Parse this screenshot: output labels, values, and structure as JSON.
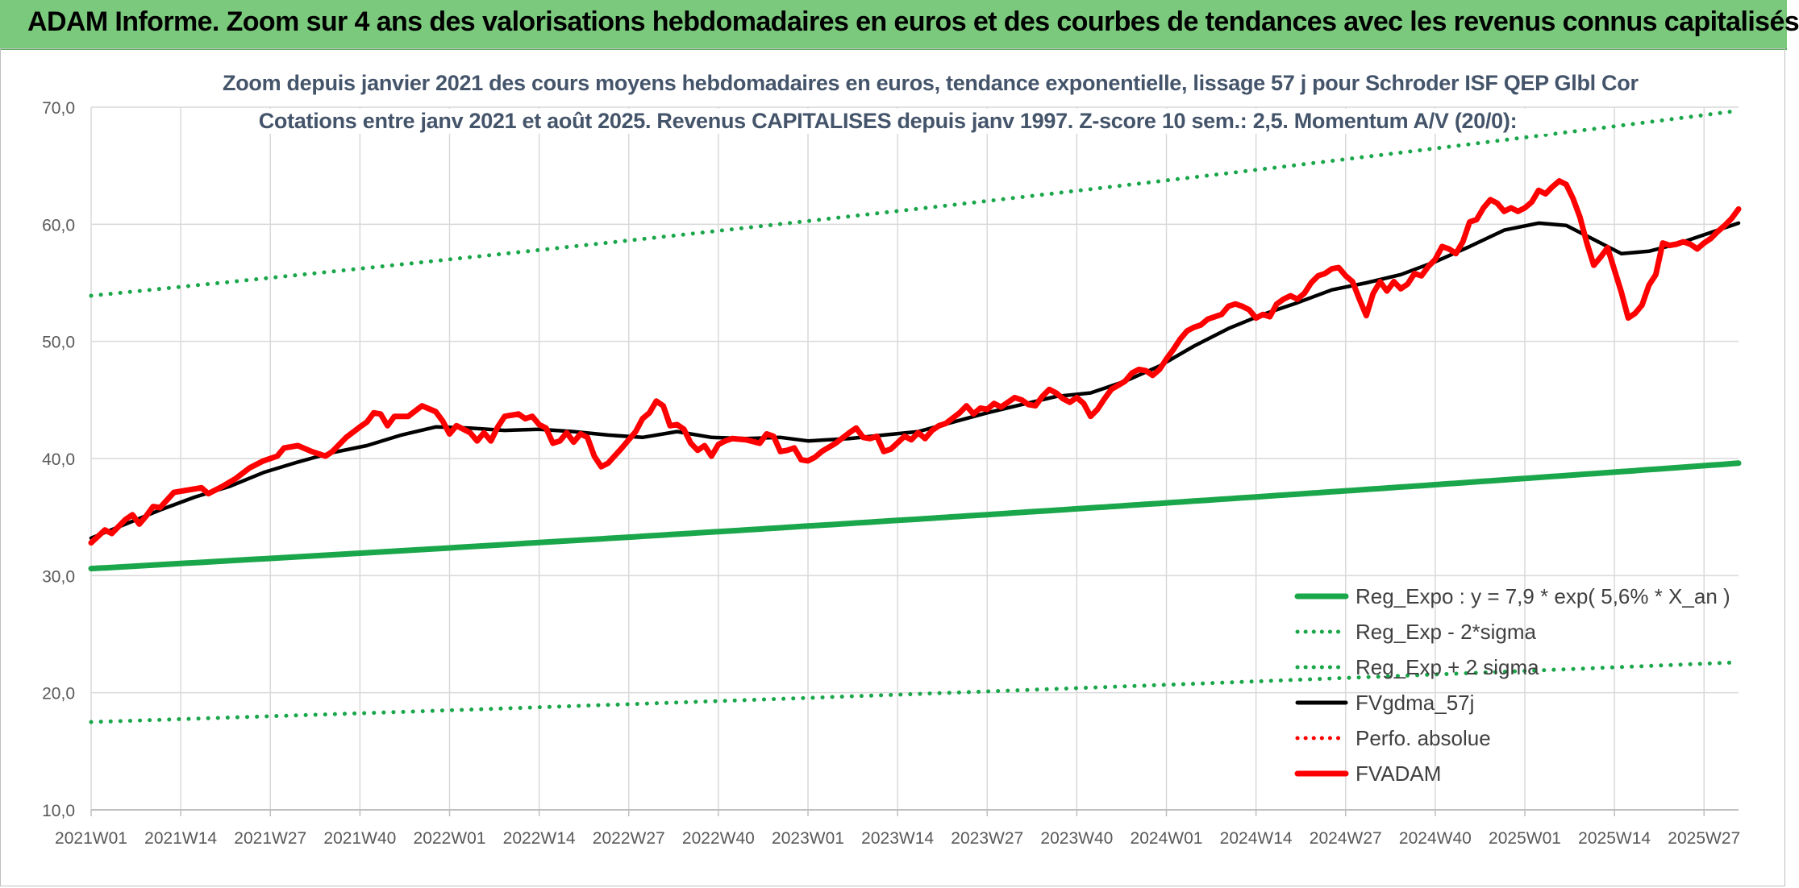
{
  "header": {
    "title": "ADAM Informe. Zoom sur 4 ans des valorisations hebdomadaires en euros et des courbes de tendances avec les revenus connus capitalisés"
  },
  "chart_data": {
    "type": "line",
    "title": "Zoom depuis janvier 2021 des cours moyens hebdomadaires en euros, tendance exponentielle, lissage 57 j pour Schroder ISF QEP Glbl Cor",
    "subtitle": "Cotations entre janv 2021 et août 2025. Revenus CAPITALISES depuis janv 1997. Z-score 10 sem.: 2,5. Momentum A/V (20/0):",
    "xlabel": "",
    "ylabel": "",
    "ylim": [
      10,
      70
    ],
    "yticks": [
      "10,0",
      "20,0",
      "30,0",
      "40,0",
      "50,0",
      "60,0",
      "70,0"
    ],
    "x_range_weeks": [
      0,
      239
    ],
    "x_ticks": [
      {
        "week": 0,
        "label": "2021W01"
      },
      {
        "week": 13,
        "label": "2021W14"
      },
      {
        "week": 26,
        "label": "2021W27"
      },
      {
        "week": 39,
        "label": "2021W40"
      },
      {
        "week": 52,
        "label": "2022W01"
      },
      {
        "week": 65,
        "label": "2022W14"
      },
      {
        "week": 78,
        "label": "2022W27"
      },
      {
        "week": 91,
        "label": "2022W40"
      },
      {
        "week": 104,
        "label": "2023W01"
      },
      {
        "week": 117,
        "label": "2023W14"
      },
      {
        "week": 130,
        "label": "2023W27"
      },
      {
        "week": 143,
        "label": "2023W40"
      },
      {
        "week": 156,
        "label": "2024W01"
      },
      {
        "week": 169,
        "label": "2024W14"
      },
      {
        "week": 182,
        "label": "2024W27"
      },
      {
        "week": 195,
        "label": "2024W40"
      },
      {
        "week": 208,
        "label": "2025W01"
      },
      {
        "week": 221,
        "label": "2025W14"
      },
      {
        "week": 234,
        "label": "2025W27"
      }
    ],
    "grid": true,
    "legend_position": "bottom-right",
    "series": [
      {
        "name": "Reg_Expo : y = 7,9 * exp( 5,6% *  X_an )",
        "color": "#1aa64a",
        "style": "solid",
        "points": [
          [
            0,
            30.6
          ],
          [
            239,
            39.6
          ]
        ]
      },
      {
        "name": "Reg_Exp - 2*sigma",
        "color": "#1aa64a",
        "style": "dotted",
        "points": [
          [
            0,
            17.5
          ],
          [
            239,
            22.6
          ]
        ]
      },
      {
        "name": "Reg_Exp + 2 sigma",
        "color": "#1aa64a",
        "style": "dotted",
        "points": [
          [
            0,
            53.9
          ],
          [
            239,
            69.7
          ]
        ]
      },
      {
        "name": "FVgdma_57j",
        "color": "#000000",
        "style": "solid",
        "points": [
          [
            0,
            33.2
          ],
          [
            5,
            34.4
          ],
          [
            10,
            35.6
          ],
          [
            15,
            36.7
          ],
          [
            20,
            37.6
          ],
          [
            25,
            38.8
          ],
          [
            30,
            39.7
          ],
          [
            35,
            40.5
          ],
          [
            40,
            41.1
          ],
          [
            45,
            42.0
          ],
          [
            50,
            42.7
          ],
          [
            55,
            42.6
          ],
          [
            60,
            42.4
          ],
          [
            65,
            42.5
          ],
          [
            70,
            42.3
          ],
          [
            75,
            42.0
          ],
          [
            80,
            41.8
          ],
          [
            85,
            42.3
          ],
          [
            90,
            41.8
          ],
          [
            95,
            41.7
          ],
          [
            100,
            41.8
          ],
          [
            104,
            41.5
          ],
          [
            110,
            41.7
          ],
          [
            115,
            42.0
          ],
          [
            120,
            42.3
          ],
          [
            125,
            43.1
          ],
          [
            130,
            43.9
          ],
          [
            135,
            44.6
          ],
          [
            140,
            45.3
          ],
          [
            145,
            45.6
          ],
          [
            150,
            46.6
          ],
          [
            155,
            47.9
          ],
          [
            160,
            49.6
          ],
          [
            165,
            51.1
          ],
          [
            170,
            52.3
          ],
          [
            175,
            53.3
          ],
          [
            180,
            54.4
          ],
          [
            185,
            55.0
          ],
          [
            190,
            55.7
          ],
          [
            195,
            56.8
          ],
          [
            200,
            58.1
          ],
          [
            205,
            59.5
          ],
          [
            210,
            60.1
          ],
          [
            214,
            59.9
          ],
          [
            218,
            58.7
          ],
          [
            222,
            57.5
          ],
          [
            226,
            57.7
          ],
          [
            230,
            58.3
          ],
          [
            235,
            59.3
          ],
          [
            239,
            60.1
          ]
        ]
      },
      {
        "name": "Perfo. absolue",
        "color": "#ff0000",
        "style": "dotted",
        "points": []
      },
      {
        "name": "FVADAM",
        "color": "#ff0000",
        "style": "solid",
        "points": [
          [
            0,
            32.8
          ],
          [
            2,
            33.9
          ],
          [
            3,
            33.6
          ],
          [
            5,
            34.8
          ],
          [
            6,
            35.2
          ],
          [
            7,
            34.4
          ],
          [
            8,
            35.1
          ],
          [
            9,
            35.9
          ],
          [
            10,
            35.8
          ],
          [
            12,
            37.1
          ],
          [
            14,
            37.3
          ],
          [
            16,
            37.5
          ],
          [
            17,
            37.0
          ],
          [
            19,
            37.6
          ],
          [
            21,
            38.3
          ],
          [
            23,
            39.2
          ],
          [
            25,
            39.8
          ],
          [
            27,
            40.2
          ],
          [
            28,
            40.9
          ],
          [
            30,
            41.1
          ],
          [
            32,
            40.6
          ],
          [
            34,
            40.2
          ],
          [
            35,
            40.6
          ],
          [
            37,
            41.8
          ],
          [
            39,
            42.7
          ],
          [
            40,
            43.1
          ],
          [
            41,
            43.9
          ],
          [
            42,
            43.8
          ],
          [
            43,
            42.8
          ],
          [
            44,
            43.6
          ],
          [
            46,
            43.6
          ],
          [
            48,
            44.5
          ],
          [
            50,
            44.0
          ],
          [
            51,
            43.2
          ],
          [
            52,
            42.1
          ],
          [
            53,
            42.8
          ],
          [
            55,
            42.2
          ],
          [
            56,
            41.5
          ],
          [
            57,
            42.2
          ],
          [
            58,
            41.5
          ],
          [
            59,
            42.7
          ],
          [
            60,
            43.6
          ],
          [
            62,
            43.8
          ],
          [
            63,
            43.4
          ],
          [
            64,
            43.6
          ],
          [
            65,
            42.9
          ],
          [
            66,
            42.6
          ],
          [
            67,
            41.3
          ],
          [
            68,
            41.5
          ],
          [
            69,
            42.2
          ],
          [
            70,
            41.4
          ],
          [
            71,
            42.1
          ],
          [
            72,
            41.8
          ],
          [
            73,
            40.2
          ],
          [
            74,
            39.3
          ],
          [
            75,
            39.6
          ],
          [
            77,
            40.9
          ],
          [
            79,
            42.3
          ],
          [
            80,
            43.4
          ],
          [
            81,
            43.9
          ],
          [
            82,
            44.9
          ],
          [
            83,
            44.5
          ],
          [
            84,
            42.8
          ],
          [
            85,
            42.9
          ],
          [
            86,
            42.5
          ],
          [
            87,
            41.3
          ],
          [
            88,
            40.7
          ],
          [
            89,
            41.1
          ],
          [
            90,
            40.2
          ],
          [
            91,
            41.2
          ],
          [
            92,
            41.5
          ],
          [
            93,
            41.7
          ],
          [
            95,
            41.6
          ],
          [
            97,
            41.3
          ],
          [
            98,
            42.1
          ],
          [
            99,
            41.9
          ],
          [
            100,
            40.6
          ],
          [
            101,
            40.7
          ],
          [
            102,
            40.9
          ],
          [
            103,
            39.9
          ],
          [
            104,
            39.8
          ],
          [
            105,
            40.1
          ],
          [
            106,
            40.6
          ],
          [
            108,
            41.3
          ],
          [
            110,
            42.2
          ],
          [
            111,
            42.6
          ],
          [
            112,
            41.8
          ],
          [
            113,
            41.7
          ],
          [
            114,
            41.9
          ],
          [
            115,
            40.6
          ],
          [
            116,
            40.8
          ],
          [
            118,
            41.9
          ],
          [
            119,
            41.6
          ],
          [
            120,
            42.2
          ],
          [
            121,
            41.7
          ],
          [
            122,
            42.4
          ],
          [
            123,
            42.8
          ],
          [
            124,
            43.0
          ],
          [
            126,
            43.9
          ],
          [
            127,
            44.5
          ],
          [
            128,
            43.8
          ],
          [
            129,
            44.3
          ],
          [
            130,
            44.2
          ],
          [
            131,
            44.7
          ],
          [
            132,
            44.4
          ],
          [
            134,
            45.2
          ],
          [
            135,
            45.0
          ],
          [
            136,
            44.6
          ],
          [
            137,
            44.5
          ],
          [
            138,
            45.3
          ],
          [
            139,
            45.9
          ],
          [
            140,
            45.6
          ],
          [
            141,
            45.1
          ],
          [
            142,
            44.8
          ],
          [
            143,
            45.2
          ],
          [
            144,
            44.7
          ],
          [
            145,
            43.6
          ],
          [
            146,
            44.2
          ],
          [
            147,
            45.1
          ],
          [
            148,
            45.9
          ],
          [
            150,
            46.6
          ],
          [
            151,
            47.3
          ],
          [
            152,
            47.6
          ],
          [
            153,
            47.5
          ],
          [
            154,
            47.1
          ],
          [
            155,
            47.6
          ],
          [
            156,
            48.5
          ],
          [
            157,
            49.3
          ],
          [
            158,
            50.2
          ],
          [
            159,
            50.9
          ],
          [
            160,
            51.2
          ],
          [
            161,
            51.4
          ],
          [
            162,
            51.9
          ],
          [
            164,
            52.3
          ],
          [
            165,
            53.0
          ],
          [
            166,
            53.2
          ],
          [
            167,
            53.0
          ],
          [
            168,
            52.7
          ],
          [
            169,
            52.0
          ],
          [
            170,
            52.3
          ],
          [
            171,
            52.1
          ],
          [
            172,
            53.2
          ],
          [
            173,
            53.6
          ],
          [
            174,
            53.9
          ],
          [
            175,
            53.6
          ],
          [
            176,
            54.1
          ],
          [
            177,
            55.0
          ],
          [
            178,
            55.6
          ],
          [
            179,
            55.8
          ],
          [
            180,
            56.2
          ],
          [
            181,
            56.3
          ],
          [
            182,
            55.6
          ],
          [
            183,
            55.1
          ],
          [
            184,
            53.6
          ],
          [
            185,
            52.2
          ],
          [
            186,
            54.1
          ],
          [
            187,
            55.1
          ],
          [
            188,
            54.3
          ],
          [
            189,
            55.1
          ],
          [
            190,
            54.5
          ],
          [
            191,
            54.9
          ],
          [
            192,
            55.8
          ],
          [
            193,
            55.6
          ],
          [
            194,
            56.4
          ],
          [
            195,
            57.0
          ],
          [
            196,
            58.1
          ],
          [
            197,
            57.9
          ],
          [
            198,
            57.5
          ],
          [
            199,
            58.5
          ],
          [
            200,
            60.2
          ],
          [
            201,
            60.4
          ],
          [
            202,
            61.4
          ],
          [
            203,
            62.1
          ],
          [
            204,
            61.8
          ],
          [
            205,
            61.1
          ],
          [
            206,
            61.4
          ],
          [
            207,
            61.1
          ],
          [
            208,
            61.4
          ],
          [
            209,
            61.9
          ],
          [
            210,
            62.9
          ],
          [
            211,
            62.6
          ],
          [
            212,
            63.2
          ],
          [
            213,
            63.7
          ],
          [
            214,
            63.4
          ],
          [
            215,
            62.2
          ],
          [
            216,
            60.6
          ],
          [
            217,
            58.4
          ],
          [
            218,
            56.5
          ],
          [
            219,
            57.2
          ],
          [
            220,
            58.0
          ],
          [
            221,
            56.1
          ],
          [
            222,
            54.2
          ],
          [
            223,
            52.0
          ],
          [
            224,
            52.4
          ],
          [
            225,
            53.1
          ],
          [
            226,
            54.8
          ],
          [
            227,
            55.7
          ],
          [
            228,
            58.4
          ],
          [
            229,
            58.2
          ],
          [
            230,
            58.3
          ],
          [
            231,
            58.5
          ],
          [
            232,
            58.3
          ],
          [
            233,
            57.9
          ],
          [
            234,
            58.4
          ],
          [
            235,
            58.8
          ],
          [
            236,
            59.4
          ],
          [
            237,
            59.9
          ],
          [
            238,
            60.5
          ],
          [
            239,
            61.3
          ]
        ]
      }
    ]
  }
}
